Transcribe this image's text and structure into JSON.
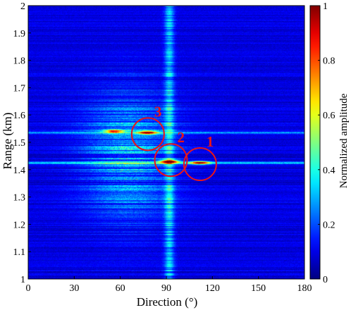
{
  "chart_data": {
    "type": "heatmap",
    "title": "",
    "xlabel": "Direction (°)",
    "ylabel": "Range (km)",
    "xlim": [
      0,
      180
    ],
    "ylim": [
      1,
      2
    ],
    "xticks": [
      "0",
      "30",
      "60",
      "90",
      "120",
      "150",
      "180"
    ],
    "yticks": [
      "1",
      "1.1",
      "1.2",
      "1.3",
      "1.4",
      "1.5",
      "1.6",
      "1.7",
      "1.8",
      "1.9",
      "2"
    ],
    "colorbar": {
      "label": "Normalized amplitude",
      "range": [
        0,
        1
      ],
      "ticks": [
        "0",
        "0.2",
        "0.4",
        "0.6",
        "0.8",
        "1"
      ],
      "colormap": "jet"
    },
    "background_level": 0.08,
    "features": [
      {
        "type": "vertical_band",
        "direction": 92,
        "width": 3,
        "range_from": 1.0,
        "range_to": 2.0,
        "amplitude": 0.25
      },
      {
        "type": "horizontal_line",
        "range": 1.425,
        "amplitude": 0.3
      },
      {
        "type": "horizontal_line",
        "range": 1.535,
        "amplitude": 0.25
      },
      {
        "type": "hotspot",
        "direction": 92,
        "range": 1.43,
        "amplitude": 0.85
      },
      {
        "type": "hotspot",
        "direction": 112,
        "range": 1.425,
        "amplitude": 0.7
      },
      {
        "type": "hotspot",
        "direction": 78,
        "range": 1.535,
        "amplitude": 0.75
      },
      {
        "type": "hotspot",
        "direction": 56,
        "range": 1.54,
        "amplitude": 0.6
      },
      {
        "type": "diffuse_region",
        "direction": 65,
        "range": 1.45,
        "amplitude": 0.25
      }
    ],
    "targets": [
      {
        "label": "1",
        "direction": 112,
        "range": 1.42
      },
      {
        "label": "2",
        "direction": 93,
        "range": 1.435
      },
      {
        "label": "3",
        "direction": 78,
        "range": 1.53
      }
    ],
    "marker_color": "#e8141a"
  }
}
